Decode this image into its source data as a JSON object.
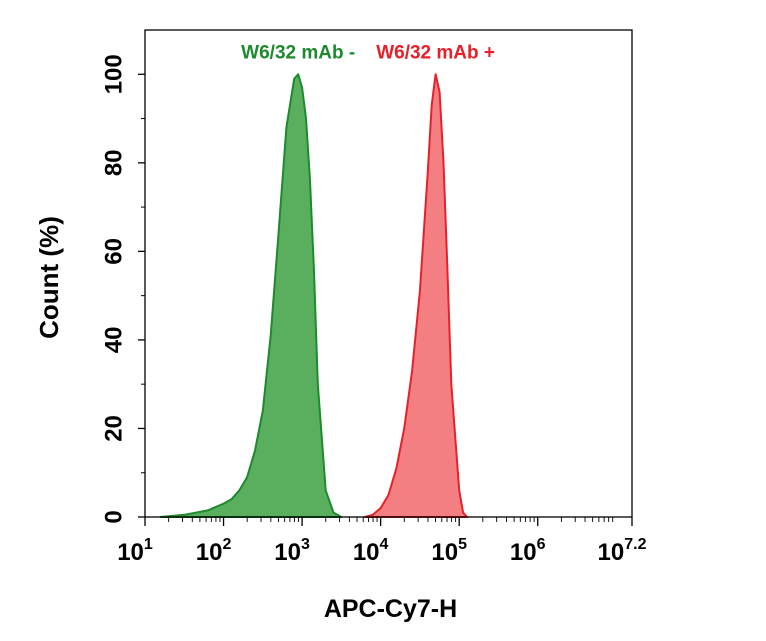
{
  "chart_data": {
    "type": "area",
    "xlabel": "APC-Cy7-H",
    "ylabel": "Count  (%)",
    "x_scale": "log10",
    "xlim": [
      1,
      7.2
    ],
    "ylim": [
      0,
      110
    ],
    "x_ticks": [
      {
        "base": "10",
        "exp": "1",
        "value": 1
      },
      {
        "base": "10",
        "exp": "2",
        "value": 2
      },
      {
        "base": "10",
        "exp": "3",
        "value": 3
      },
      {
        "base": "10",
        "exp": "4",
        "value": 4
      },
      {
        "base": "10",
        "exp": "5",
        "value": 5
      },
      {
        "base": "10",
        "exp": "6",
        "value": 6
      },
      {
        "base": "10",
        "exp": "7.2",
        "value": 7.2
      }
    ],
    "y_ticks": [
      "0",
      "20",
      "40",
      "60",
      "80",
      "100"
    ],
    "grid": false,
    "legend": "none",
    "series": [
      {
        "name": "W6/32 mAb -",
        "label": "W6/32 mAb -",
        "line_color": "#1e8a2e",
        "fill_color": "#5aaf5f",
        "x_log": [
          1.2,
          1.5,
          1.8,
          2.0,
          2.1,
          2.2,
          2.3,
          2.4,
          2.5,
          2.6,
          2.7,
          2.8,
          2.9,
          2.95,
          3.0,
          3.05,
          3.1,
          3.15,
          3.2,
          3.3,
          3.4,
          3.5
        ],
        "y": [
          0,
          0.5,
          1.5,
          3,
          4,
          6,
          9,
          15,
          24,
          41,
          64,
          88,
          99,
          100,
          97,
          90,
          76,
          56,
          30,
          6,
          1,
          0
        ]
      },
      {
        "name": "W6/32 mAb +",
        "label": "W6/32 mAb +",
        "line_color": "#e8202a",
        "fill_color": "#f47f83",
        "x_log": [
          3.8,
          3.9,
          4.0,
          4.1,
          4.2,
          4.3,
          4.4,
          4.5,
          4.6,
          4.65,
          4.7,
          4.75,
          4.8,
          4.85,
          4.9,
          5.0,
          5.05,
          5.1
        ],
        "y": [
          0,
          0.5,
          2,
          5,
          11,
          20,
          33,
          51,
          78,
          93,
          100,
          96,
          80,
          56,
          30,
          6,
          1,
          0
        ]
      }
    ]
  }
}
